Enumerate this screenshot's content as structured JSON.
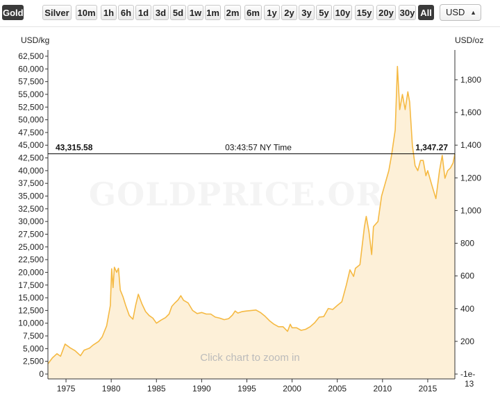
{
  "toolbar": {
    "metals": [
      {
        "label": "Gold",
        "active": true
      },
      {
        "label": "Silver",
        "active": false
      }
    ],
    "ranges": [
      {
        "label": "10m"
      },
      {
        "label": "1h"
      },
      {
        "label": "6h"
      },
      {
        "label": "1d"
      },
      {
        "label": "3d"
      },
      {
        "label": "5d"
      },
      {
        "label": "1w"
      },
      {
        "label": "1m"
      },
      {
        "label": "2m"
      },
      {
        "label": "6m"
      },
      {
        "label": "1y"
      },
      {
        "label": "2y"
      },
      {
        "label": "3y"
      },
      {
        "label": "5y"
      },
      {
        "label": "10y"
      },
      {
        "label": "15y"
      },
      {
        "label": "20y"
      },
      {
        "label": "30y"
      },
      {
        "label": "All",
        "active": true
      }
    ],
    "currency": "USD"
  },
  "watermark": "GOLDPRICE.ORG",
  "zoom_hint": "Click chart to zoom in",
  "crosshair": {
    "left_value": "43,315.58",
    "time": "03:43:57 NY Time",
    "right_value": "1,347.27"
  },
  "colors": {
    "line": "#f5b942",
    "fill": "#fdf0d8",
    "crosshair": "#000000"
  },
  "chart_data": {
    "type": "area",
    "left_unit": "USD/kg",
    "right_unit": "USD/oz",
    "x_ticks": [
      "1975",
      "1980",
      "1985",
      "1990",
      "1995",
      "2000",
      "2005",
      "2010",
      "2015"
    ],
    "y_left_ticks": [
      "62,500",
      "60,000",
      "57,500",
      "55,000",
      "52,500",
      "50,000",
      "47,500",
      "45,000",
      "42,500",
      "40,000",
      "37,500",
      "35,000",
      "32,500",
      "30,000",
      "27,500",
      "25,000",
      "22,500",
      "20,000",
      "17,500",
      "15,000",
      "12,500",
      "10,000",
      "7,500",
      "5,000",
      "2,500",
      "0"
    ],
    "y_right_ticks": [
      "1,800",
      "1,600",
      "1,400",
      "1,200",
      "1,000",
      "800",
      "600",
      "400",
      "200",
      "-1e-13"
    ],
    "xlim": [
      1973.0,
      2018.0
    ],
    "ylim_left": [
      0,
      62500
    ],
    "series": [
      {
        "values_usd_per_kg": [
          [
            1973.0,
            2000
          ],
          [
            1973.5,
            3200
          ],
          [
            1974.0,
            4000
          ],
          [
            1974.4,
            3500
          ],
          [
            1974.9,
            5900
          ],
          [
            1975.5,
            5100
          ],
          [
            1976.0,
            4600
          ],
          [
            1976.6,
            3600
          ],
          [
            1977.0,
            4700
          ],
          [
            1977.6,
            5100
          ],
          [
            1978.0,
            5700
          ],
          [
            1978.6,
            6400
          ],
          [
            1979.0,
            7300
          ],
          [
            1979.5,
            9500
          ],
          [
            1979.9,
            13500
          ],
          [
            1980.05,
            20700
          ],
          [
            1980.2,
            17000
          ],
          [
            1980.35,
            21000
          ],
          [
            1980.6,
            20000
          ],
          [
            1980.8,
            20800
          ],
          [
            1981.0,
            16500
          ],
          [
            1981.3,
            15200
          ],
          [
            1981.6,
            13500
          ],
          [
            1982.0,
            11500
          ],
          [
            1982.4,
            10800
          ],
          [
            1982.7,
            13500
          ],
          [
            1983.0,
            15700
          ],
          [
            1983.4,
            13800
          ],
          [
            1983.8,
            12300
          ],
          [
            1984.2,
            11500
          ],
          [
            1984.6,
            11000
          ],
          [
            1985.0,
            10000
          ],
          [
            1985.5,
            10600
          ],
          [
            1986.0,
            11100
          ],
          [
            1986.4,
            11800
          ],
          [
            1986.7,
            13300
          ],
          [
            1987.0,
            13900
          ],
          [
            1987.4,
            14600
          ],
          [
            1987.7,
            15400
          ],
          [
            1988.0,
            14500
          ],
          [
            1988.5,
            14000
          ],
          [
            1989.0,
            12500
          ],
          [
            1989.5,
            11900
          ],
          [
            1990.0,
            12100
          ],
          [
            1990.5,
            11800
          ],
          [
            1991.0,
            11800
          ],
          [
            1991.5,
            11200
          ],
          [
            1992.0,
            11000
          ],
          [
            1992.5,
            10700
          ],
          [
            1993.0,
            10900
          ],
          [
            1993.4,
            11600
          ],
          [
            1993.7,
            12400
          ],
          [
            1994.0,
            12000
          ],
          [
            1994.5,
            12300
          ],
          [
            1995.0,
            12400
          ],
          [
            1995.5,
            12500
          ],
          [
            1996.0,
            12600
          ],
          [
            1996.5,
            12100
          ],
          [
            1997.0,
            11400
          ],
          [
            1997.5,
            10500
          ],
          [
            1998.0,
            9800
          ],
          [
            1998.5,
            9300
          ],
          [
            1999.0,
            9300
          ],
          [
            1999.5,
            8400
          ],
          [
            1999.8,
            9800
          ],
          [
            2000.0,
            9100
          ],
          [
            2000.5,
            9100
          ],
          [
            2001.0,
            8600
          ],
          [
            2001.5,
            8800
          ],
          [
            2002.0,
            9300
          ],
          [
            2002.5,
            10100
          ],
          [
            2003.0,
            11200
          ],
          [
            2003.5,
            11300
          ],
          [
            2004.0,
            12900
          ],
          [
            2004.5,
            12700
          ],
          [
            2005.0,
            13500
          ],
          [
            2005.5,
            14200
          ],
          [
            2006.0,
            17500
          ],
          [
            2006.4,
            20500
          ],
          [
            2006.8,
            19200
          ],
          [
            2007.0,
            20800
          ],
          [
            2007.5,
            21500
          ],
          [
            2008.0,
            29000
          ],
          [
            2008.2,
            31000
          ],
          [
            2008.5,
            28000
          ],
          [
            2008.8,
            23500
          ],
          [
            2009.0,
            29000
          ],
          [
            2009.5,
            30000
          ],
          [
            2009.9,
            35000
          ],
          [
            2010.3,
            37500
          ],
          [
            2010.7,
            40000
          ],
          [
            2011.0,
            43000
          ],
          [
            2011.4,
            48000
          ],
          [
            2011.65,
            60500
          ],
          [
            2011.9,
            52000
          ],
          [
            2012.2,
            55000
          ],
          [
            2012.5,
            52000
          ],
          [
            2012.8,
            55500
          ],
          [
            2013.0,
            53500
          ],
          [
            2013.3,
            45000
          ],
          [
            2013.6,
            41000
          ],
          [
            2013.9,
            40000
          ],
          [
            2014.2,
            42000
          ],
          [
            2014.5,
            42000
          ],
          [
            2014.8,
            39000
          ],
          [
            2015.0,
            40000
          ],
          [
            2015.4,
            37500
          ],
          [
            2015.9,
            34500
          ],
          [
            2016.3,
            40000
          ],
          [
            2016.6,
            43000
          ],
          [
            2016.9,
            38500
          ],
          [
            2017.2,
            40000
          ],
          [
            2017.5,
            40500
          ],
          [
            2017.8,
            41500
          ],
          [
            2018.0,
            43300
          ]
        ]
      }
    ]
  }
}
